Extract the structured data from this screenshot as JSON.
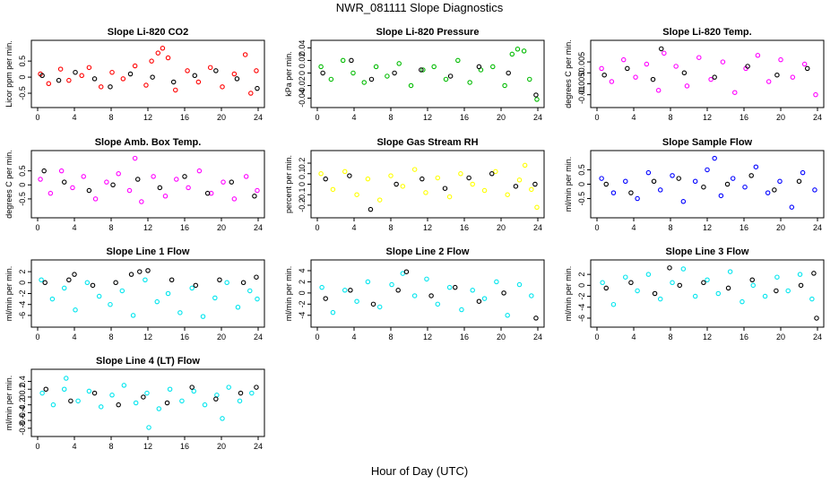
{
  "figure": {
    "title": "NWR_081111  Slope Diagnostics",
    "xlabel": "Hour of Day (UTC)"
  },
  "chart_data": [
    {
      "type": "scatter",
      "title": "Slope Li-820 CO2",
      "ylabel": "Licor ppm per min.",
      "xlim": [
        0,
        24
      ],
      "ylim": [
        -0.75,
        0.95
      ],
      "x_ticks": [
        0,
        4,
        8,
        12,
        16,
        20,
        24
      ],
      "y_ticks": [
        -0.5,
        0,
        0.5
      ],
      "series": [
        {
          "color": "#ff0000",
          "x": [
            0.3,
            1.2,
            2.5,
            3.4,
            4.8,
            5.6,
            6.9,
            8.1,
            9.3,
            10.6,
            11.8,
            12.4,
            13.1,
            13.6,
            14.2,
            15.0,
            16.3,
            17.5,
            18.8,
            20.1,
            21.4,
            22.6,
            23.2,
            23.8
          ],
          "y": [
            0.1,
            -0.2,
            0.25,
            -0.1,
            0.05,
            0.3,
            -0.3,
            0.15,
            -0.05,
            0.35,
            -0.25,
            0.5,
            0.75,
            0.9,
            0.6,
            -0.4,
            0.2,
            -0.15,
            0.3,
            -0.3,
            0.1,
            0.7,
            -0.5,
            0.2
          ]
        },
        {
          "color": "#000000",
          "x": [
            0.5,
            2.3,
            4.1,
            6.2,
            7.9,
            10.1,
            12.5,
            14.8,
            17.1,
            19.4,
            21.7,
            23.9
          ],
          "y": [
            0.05,
            -0.1,
            0.15,
            -0.05,
            -0.3,
            0.1,
            0.0,
            -0.15,
            0.05,
            0.2,
            -0.05,
            -0.35
          ]
        }
      ]
    },
    {
      "type": "scatter",
      "title": "Slope Li-820 Pressure",
      "ylabel": "kPa per min.",
      "xlim": [
        0,
        24
      ],
      "ylim": [
        -0.045,
        0.042
      ],
      "x_ticks": [
        0,
        4,
        8,
        12,
        16,
        20,
        24
      ],
      "y_ticks": [
        -0.04,
        -0.02,
        0.0,
        0.02,
        0.04
      ],
      "series": [
        {
          "color": "#00bb00",
          "x": [
            0.4,
            1.5,
            2.8,
            3.9,
            5.1,
            6.4,
            7.6,
            8.9,
            10.2,
            11.5,
            12.7,
            14.0,
            15.3,
            16.6,
            17.8,
            19.1,
            20.4,
            21.2,
            21.8,
            22.5,
            23.1,
            23.9
          ],
          "y": [
            0.01,
            -0.01,
            0.02,
            0.0,
            -0.015,
            0.01,
            -0.005,
            0.015,
            -0.02,
            0.005,
            0.01,
            -0.01,
            0.02,
            -0.015,
            0.005,
            0.01,
            -0.02,
            0.03,
            0.038,
            0.035,
            -0.01,
            -0.042
          ]
        },
        {
          "color": "#000000",
          "x": [
            0.6,
            3.7,
            5.9,
            8.4,
            11.3,
            14.5,
            17.6,
            20.8,
            23.8
          ],
          "y": [
            0.0,
            0.02,
            -0.01,
            0.0,
            0.005,
            -0.005,
            0.01,
            0.0,
            -0.035
          ]
        }
      ]
    },
    {
      "type": "scatter",
      "title": "Slope Li-820 Temp.",
      "ylabel": "degrees C per min.",
      "xlim": [
        0,
        24
      ],
      "ylim": [
        -0.013,
        0.012
      ],
      "x_ticks": [
        0,
        4,
        8,
        12,
        16,
        20,
        24
      ],
      "y_ticks": [
        -0.01,
        -0.005,
        0.0,
        0.005
      ],
      "series": [
        {
          "color": "#ff00ff",
          "x": [
            0.5,
            1.6,
            2.9,
            4.2,
            5.4,
            6.7,
            7.3,
            8.6,
            9.8,
            11.1,
            12.4,
            13.7,
            15.0,
            16.2,
            17.5,
            18.7,
            20.0,
            21.3,
            22.6,
            23.8
          ],
          "y": [
            0.002,
            -0.004,
            0.006,
            -0.002,
            0.004,
            -0.008,
            0.009,
            0.003,
            -0.006,
            0.007,
            -0.003,
            0.005,
            -0.009,
            0.002,
            0.008,
            -0.004,
            0.006,
            -0.002,
            0.004,
            -0.01
          ]
        },
        {
          "color": "#000000",
          "x": [
            0.8,
            3.3,
            6.1,
            7.0,
            9.5,
            12.8,
            16.4,
            19.6,
            22.9
          ],
          "y": [
            -0.001,
            0.002,
            -0.003,
            0.011,
            0.0,
            -0.002,
            0.003,
            -0.001,
            0.002
          ]
        }
      ]
    },
    {
      "type": "scatter",
      "title": "Slope Amb. Box Temp.",
      "ylabel": "degrees C per min.",
      "xlim": [
        0,
        24
      ],
      "ylim": [
        -0.95,
        1.0
      ],
      "x_ticks": [
        0,
        4,
        8,
        12,
        16,
        20,
        24
      ],
      "y_ticks": [
        -0.5,
        0.0,
        0.5
      ],
      "series": [
        {
          "color": "#ff00ff",
          "x": [
            0.3,
            1.4,
            2.6,
            3.8,
            5.0,
            6.3,
            7.5,
            8.8,
            10.0,
            10.6,
            11.3,
            12.6,
            13.9,
            15.1,
            16.4,
            17.6,
            18.9,
            20.2,
            21.4,
            22.7,
            23.9
          ],
          "y": [
            0.2,
            -0.3,
            0.5,
            -0.1,
            0.3,
            -0.5,
            0.1,
            0.4,
            -0.2,
            0.95,
            -0.6,
            0.3,
            -0.4,
            0.2,
            -0.1,
            0.5,
            -0.3,
            0.1,
            -0.5,
            0.3,
            -0.2
          ]
        },
        {
          "color": "#000000",
          "x": [
            0.7,
            2.9,
            5.6,
            8.2,
            10.9,
            13.3,
            16.0,
            18.5,
            21.1,
            23.6
          ],
          "y": [
            0.5,
            0.1,
            -0.2,
            0.0,
            0.2,
            -0.1,
            0.3,
            -0.3,
            0.1,
            -0.4
          ]
        }
      ]
    },
    {
      "type": "scatter",
      "title": "Slope Gas Stream RH",
      "ylabel": "percent per min.",
      "xlim": [
        0,
        24
      ],
      "ylim": [
        -0.26,
        0.26
      ],
      "x_ticks": [
        0,
        4,
        8,
        12,
        16,
        20,
        24
      ],
      "y_ticks": [
        -0.2,
        -0.1,
        0.0,
        0.1,
        0.2
      ],
      "series": [
        {
          "color": "#ffff00",
          "x": [
            0.4,
            1.7,
            3.0,
            4.3,
            5.5,
            6.8,
            8.0,
            9.3,
            10.6,
            11.8,
            13.1,
            14.4,
            15.6,
            16.9,
            18.2,
            19.4,
            20.7,
            22.0,
            22.6,
            23.3,
            23.9
          ],
          "y": [
            0.1,
            -0.05,
            0.12,
            -0.1,
            0.05,
            -0.15,
            0.08,
            -0.02,
            0.14,
            -0.08,
            0.06,
            -0.12,
            0.1,
            0.0,
            -0.06,
            0.12,
            -0.1,
            0.04,
            0.18,
            -0.05,
            -0.22
          ]
        },
        {
          "color": "#000000",
          "x": [
            0.9,
            3.5,
            5.8,
            8.6,
            11.4,
            13.9,
            16.5,
            19.0,
            21.6,
            23.7
          ],
          "y": [
            0.05,
            0.08,
            -0.24,
            0.0,
            0.05,
            -0.04,
            0.06,
            0.1,
            -0.02,
            0.0
          ]
        }
      ]
    },
    {
      "type": "scatter",
      "title": "Slope Sample Flow",
      "ylabel": "ml/min per min.",
      "xlim": [
        0,
        24
      ],
      "ylim": [
        -0.95,
        0.95
      ],
      "x_ticks": [
        0,
        4,
        8,
        12,
        16,
        20,
        24
      ],
      "y_ticks": [
        -0.5,
        0.0,
        0.5
      ],
      "series": [
        {
          "color": "#0000ff",
          "x": [
            0.5,
            1.8,
            3.1,
            4.4,
            5.6,
            6.9,
            8.2,
            9.4,
            10.7,
            12.0,
            12.8,
            13.5,
            14.8,
            16.1,
            17.3,
            18.6,
            19.9,
            21.2,
            22.4,
            23.7
          ],
          "y": [
            0.2,
            -0.3,
            0.1,
            -0.5,
            0.4,
            -0.2,
            0.3,
            -0.6,
            0.1,
            0.5,
            0.9,
            -0.4,
            0.2,
            -0.1,
            0.6,
            -0.3,
            0.1,
            -0.8,
            0.4,
            -0.2
          ]
        },
        {
          "color": "#000000",
          "x": [
            1.0,
            3.7,
            6.2,
            8.9,
            11.6,
            14.2,
            16.8,
            19.3,
            22.0
          ],
          "y": [
            0.0,
            -0.3,
            0.1,
            0.2,
            -0.1,
            0.0,
            0.3,
            -0.2,
            0.1
          ]
        }
      ]
    },
    {
      "type": "scatter",
      "title": "Slope Line 1 Flow",
      "ylabel": "ml/min per min.",
      "xlim": [
        0,
        24
      ],
      "ylim": [
        -7.0,
        3.0
      ],
      "x_ticks": [
        0,
        4,
        8,
        12,
        16,
        20,
        24
      ],
      "y_ticks": [
        -6,
        -4,
        -2,
        0,
        2
      ],
      "series": [
        {
          "color": "#00e5ee",
          "x": [
            0.4,
            1.6,
            2.9,
            4.1,
            5.4,
            6.7,
            7.9,
            9.2,
            10.4,
            11.7,
            13.0,
            14.2,
            15.5,
            16.8,
            18.0,
            19.3,
            20.6,
            21.8,
            23.1,
            23.9
          ],
          "y": [
            0.5,
            -3.0,
            -1.0,
            -5.0,
            0.0,
            -2.5,
            -4.0,
            -1.5,
            -6.0,
            0.5,
            -3.5,
            -2.0,
            -5.5,
            -1.0,
            -6.2,
            -2.8,
            0.0,
            -4.5,
            -1.5,
            -3.0
          ]
        },
        {
          "color": "#000000",
          "x": [
            0.8,
            3.4,
            4.0,
            6.0,
            8.5,
            10.2,
            11.1,
            12.0,
            14.6,
            17.2,
            19.8,
            22.4,
            23.8
          ],
          "y": [
            0.0,
            0.5,
            1.5,
            -0.5,
            0.0,
            1.5,
            2.0,
            2.2,
            0.5,
            -0.5,
            0.5,
            0.0,
            1.0
          ]
        }
      ]
    },
    {
      "type": "scatter",
      "title": "Slope Line 2 Flow",
      "ylabel": "ml/min per min.",
      "xlim": [
        0,
        24
      ],
      "ylim": [
        -5.0,
        4.8
      ],
      "x_ticks": [
        0,
        4,
        8,
        12,
        16,
        20,
        24
      ],
      "y_ticks": [
        -4,
        -2,
        0,
        2,
        4
      ],
      "series": [
        {
          "color": "#00e5ee",
          "x": [
            0.5,
            1.7,
            3.0,
            4.3,
            5.5,
            6.8,
            8.1,
            9.3,
            10.6,
            11.9,
            13.1,
            14.4,
            15.7,
            16.9,
            18.2,
            19.5,
            20.7,
            22.0,
            23.3
          ],
          "y": [
            1.0,
            -3.5,
            0.5,
            -1.5,
            2.0,
            -2.5,
            1.5,
            3.5,
            -0.5,
            2.5,
            -2.0,
            1.0,
            -3.0,
            0.5,
            -1.0,
            2.0,
            -4.0,
            1.5,
            -0.5
          ]
        },
        {
          "color": "#000000",
          "x": [
            0.9,
            3.6,
            6.1,
            8.8,
            9.7,
            12.4,
            15.0,
            17.6,
            20.3,
            23.8
          ],
          "y": [
            -1.0,
            0.5,
            -2.0,
            0.5,
            3.8,
            -0.5,
            1.0,
            -1.5,
            0.0,
            -4.5
          ]
        }
      ]
    },
    {
      "type": "scatter",
      "title": "Slope Line 3 Flow",
      "ylabel": "ml/min per min.",
      "xlim": [
        0,
        24
      ],
      "ylim": [
        -6.5,
        3.5
      ],
      "x_ticks": [
        0,
        4,
        8,
        12,
        16,
        20,
        24
      ],
      "y_ticks": [
        -6,
        -4,
        -2,
        0,
        2
      ],
      "series": [
        {
          "color": "#00e5ee",
          "x": [
            0.6,
            1.8,
            3.1,
            4.4,
            5.6,
            6.9,
            8.2,
            9.4,
            10.7,
            12.0,
            13.2,
            14.5,
            15.8,
            17.0,
            18.3,
            19.6,
            20.8,
            22.1,
            23.4
          ],
          "y": [
            0.5,
            -3.5,
            1.5,
            -1.0,
            2.0,
            -2.5,
            0.5,
            3.0,
            -2.0,
            1.0,
            -1.5,
            2.5,
            -3.0,
            0.0,
            -2.0,
            1.5,
            -1.0,
            2.0,
            -2.5
          ]
        },
        {
          "color": "#000000",
          "x": [
            1.0,
            3.7,
            6.3,
            7.9,
            9.0,
            11.6,
            14.3,
            16.9,
            19.5,
            22.2,
            23.6,
            23.9
          ],
          "y": [
            -0.5,
            0.5,
            -1.5,
            3.2,
            0.0,
            0.5,
            -0.5,
            1.0,
            -1.0,
            0.0,
            2.2,
            -6.0
          ]
        }
      ]
    },
    {
      "type": "scatter",
      "title": "Slope Line 4 (LT) Flow",
      "ylabel": "ml/min per min.",
      "xlim": [
        0,
        24
      ],
      "ylim": [
        -0.85,
        0.55
      ],
      "x_ticks": [
        0,
        4,
        8,
        12,
        16,
        20,
        24
      ],
      "y_ticks": [
        -0.8,
        -0.6,
        -0.4,
        -0.2,
        0.0,
        0.2,
        0.4
      ],
      "series": [
        {
          "color": "#00e5ee",
          "x": [
            0.5,
            1.7,
            2.9,
            3.1,
            4.4,
            5.6,
            6.9,
            8.1,
            9.4,
            10.7,
            11.9,
            12.1,
            13.2,
            14.4,
            15.7,
            17.0,
            18.2,
            19.5,
            20.1,
            20.8,
            22.0,
            23.3
          ],
          "y": [
            0.1,
            -0.2,
            0.2,
            0.48,
            -0.1,
            0.15,
            -0.25,
            0.05,
            0.3,
            -0.15,
            0.1,
            -0.78,
            -0.3,
            0.2,
            -0.1,
            0.15,
            -0.2,
            0.05,
            -0.55,
            0.25,
            -0.1,
            0.1
          ]
        },
        {
          "color": "#000000",
          "x": [
            0.9,
            3.6,
            6.2,
            8.8,
            11.5,
            14.1,
            16.8,
            19.4,
            22.1,
            23.8
          ],
          "y": [
            0.2,
            -0.1,
            0.1,
            -0.2,
            0.0,
            -0.15,
            0.25,
            -0.05,
            0.1,
            0.25
          ]
        }
      ]
    }
  ]
}
